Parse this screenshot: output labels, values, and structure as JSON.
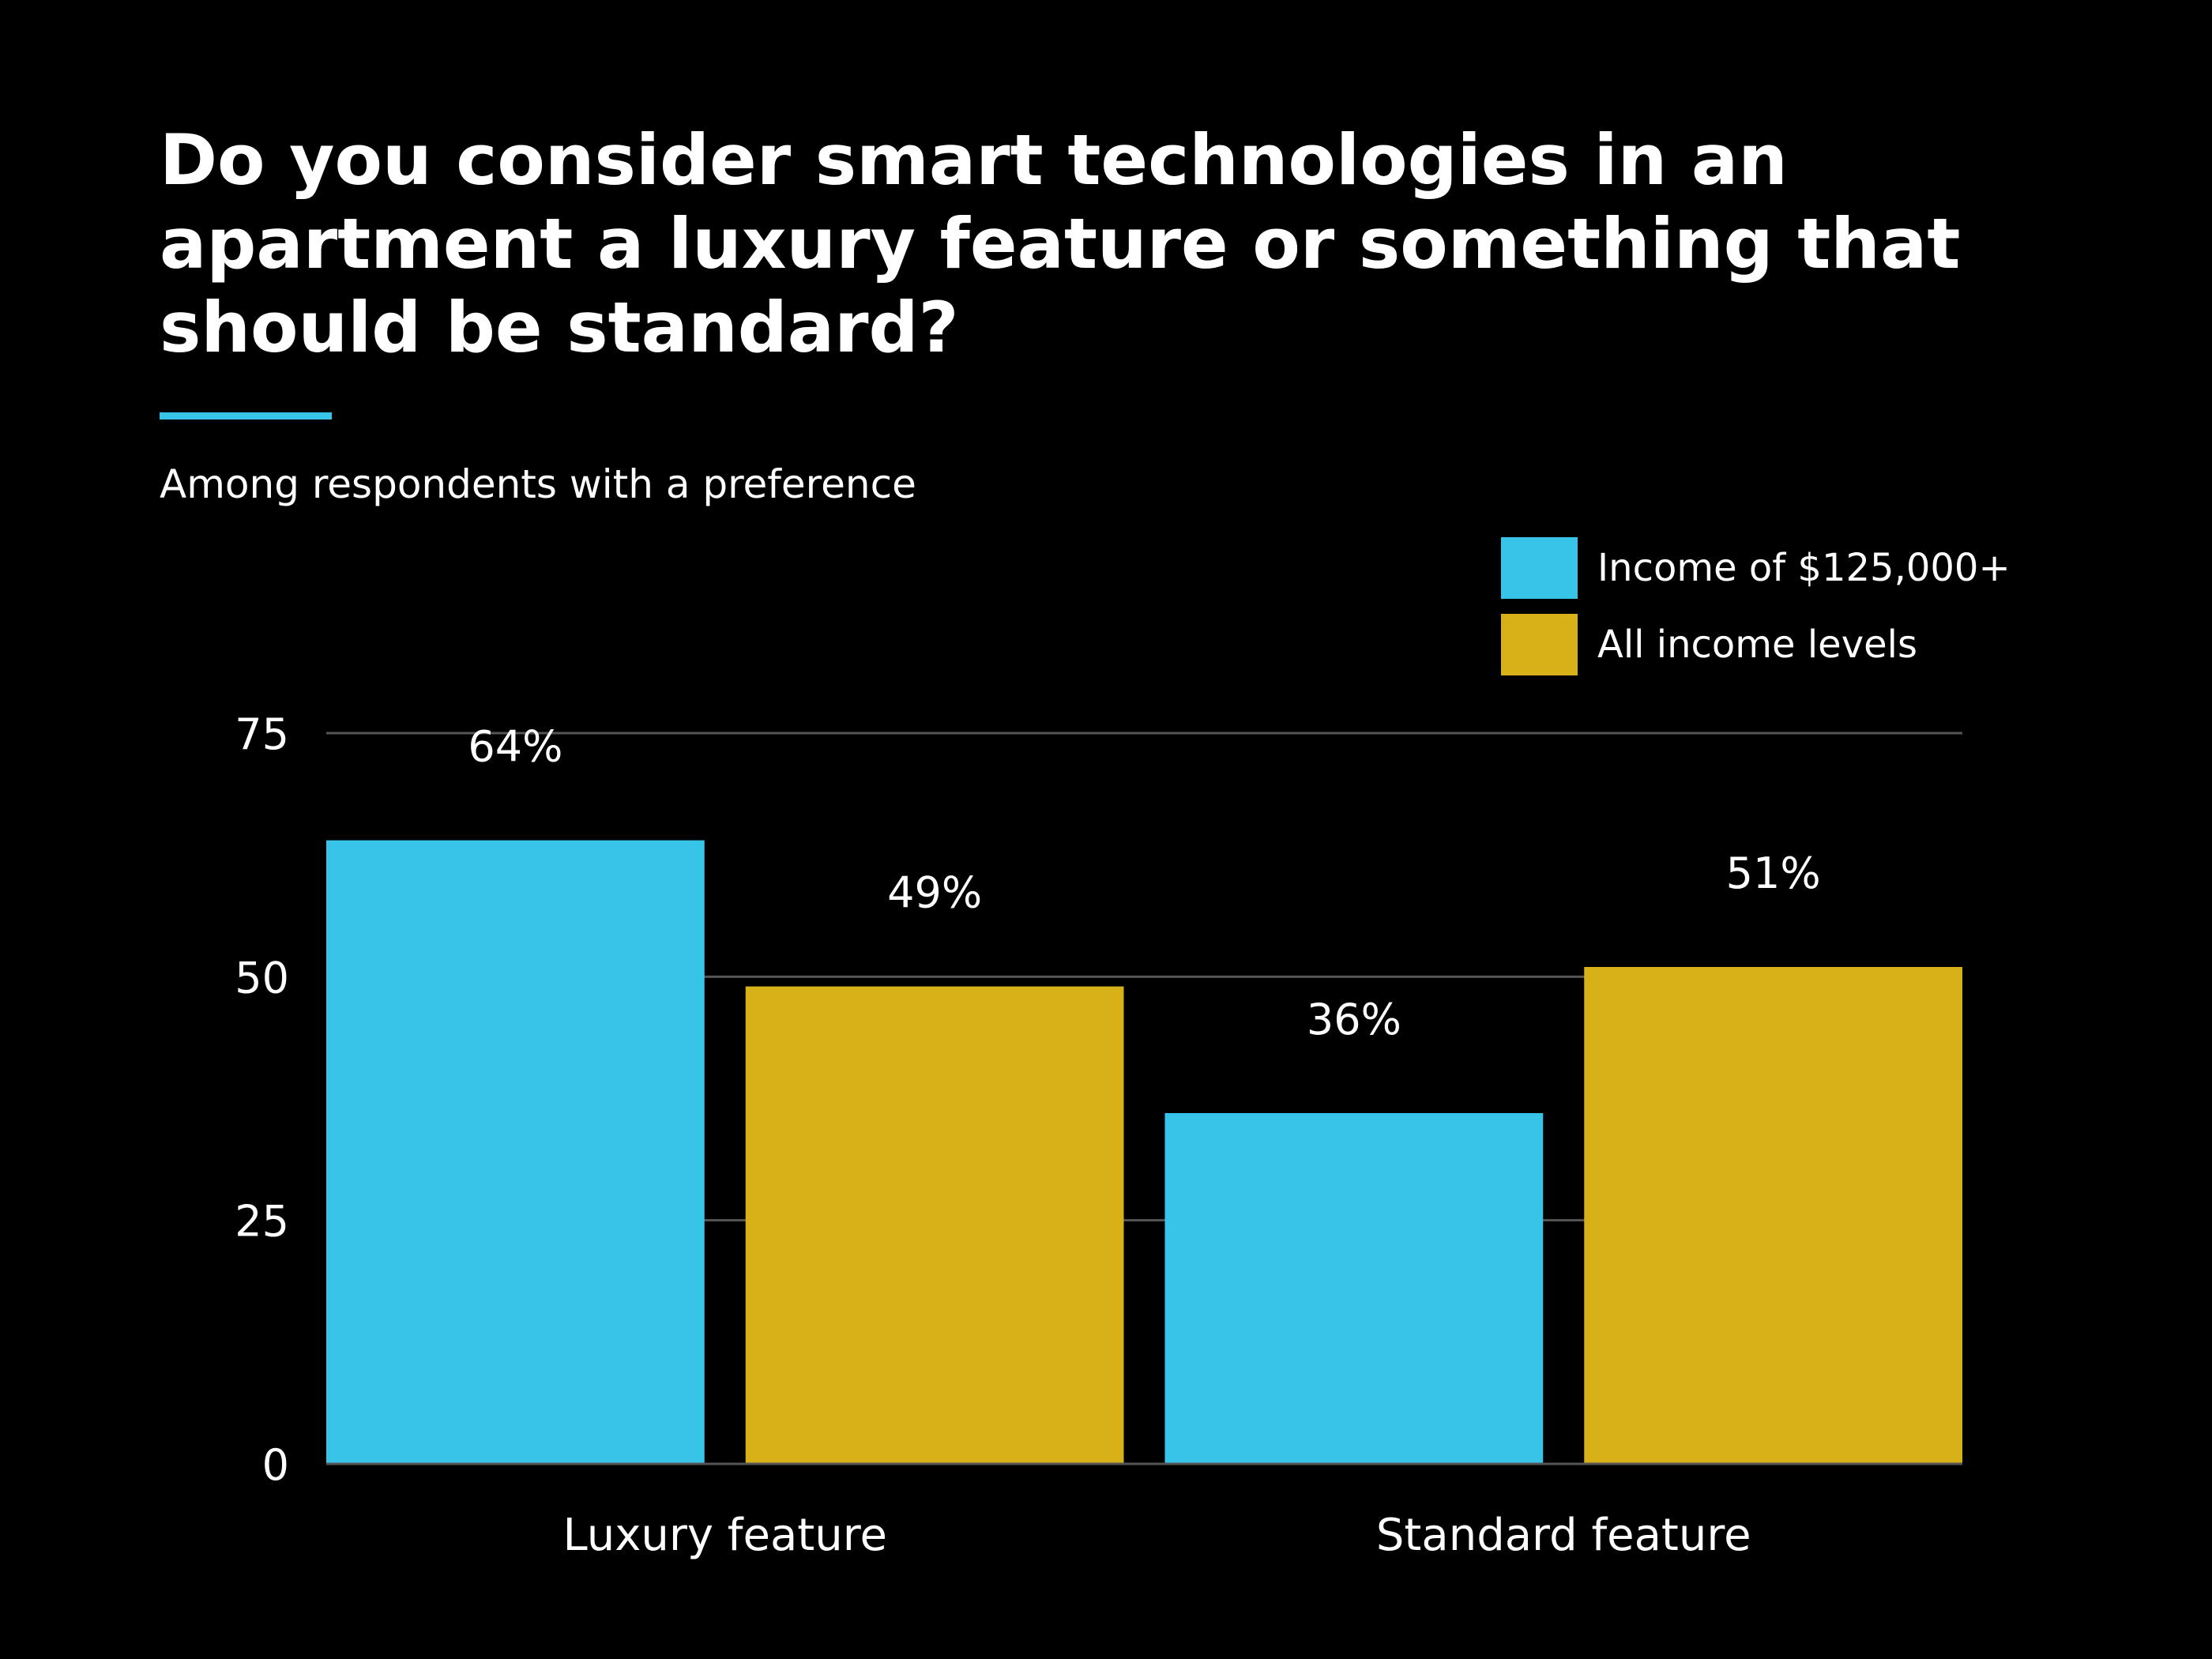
{
  "chart_data": {
    "type": "bar",
    "title": "Do you consider smart technologies in an apartment a luxury feature or something that should be standard?",
    "subtitle": "Among respondents with a preference",
    "categories": [
      "Luxury feature",
      "Standard feature"
    ],
    "series": [
      {
        "name": "Income of $125,000+",
        "values": [
          64,
          36
        ],
        "labels": [
          "64%",
          "36%"
        ],
        "color": "#38c3e8"
      },
      {
        "name": "All income levels",
        "values": [
          49,
          51
        ],
        "labels": [
          "49%",
          "51%"
        ],
        "color": "#d8b017"
      }
    ],
    "ylim": [
      0,
      75
    ],
    "yticks": [
      {
        "value": 0,
        "label": "0"
      },
      {
        "value": 25,
        "label": "25"
      },
      {
        "value": 50,
        "label": "50"
      },
      {
        "value": 75,
        "label": "75"
      }
    ],
    "grid": true,
    "legend_position": "top-right",
    "gridline_color": "#555555"
  }
}
